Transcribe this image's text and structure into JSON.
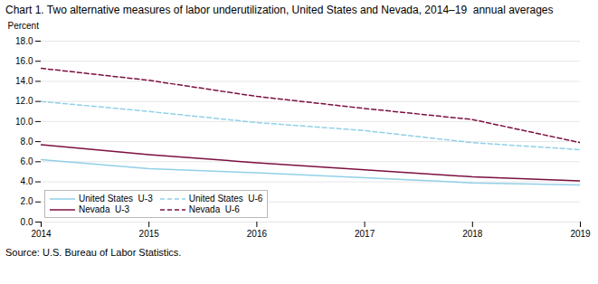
{
  "chart_data": {
    "type": "line",
    "title": "Chart 1. Two alternative measures of labor underutilization, United States and Nevada, 2014–19  annual averages",
    "y_label": "Percent",
    "caption": "Source: U.S. Bureau of Labor Statistics.",
    "x": [
      2014,
      2015,
      2016,
      2017,
      2018,
      2019
    ],
    "xlim": [
      2014,
      2019
    ],
    "xticks": [
      2014,
      2015,
      2016,
      2017,
      2018,
      2019
    ],
    "ylim": [
      0.0,
      18.0
    ],
    "yticks": [
      {
        "value": 0.0,
        "label": "0.0"
      },
      {
        "value": 2.0,
        "label": "2.0"
      },
      {
        "value": 4.0,
        "label": "4.0"
      },
      {
        "value": 6.0,
        "label": "6.0"
      },
      {
        "value": 8.0,
        "label": "8.0"
      },
      {
        "value": 10.0,
        "label": "10.0"
      },
      {
        "value": 12.0,
        "label": "12.0"
      },
      {
        "value": 14.0,
        "label": "14.0"
      },
      {
        "value": 16.0,
        "label": "16.0"
      },
      {
        "value": 18.0,
        "label": "18.0"
      }
    ],
    "grid": true,
    "legend": "lower left",
    "series": [
      {
        "name": "United States  U-3",
        "color": "#92D0E8",
        "line_style": "solid",
        "values": [
          6.2,
          5.3,
          4.9,
          4.4,
          3.9,
          3.7
        ]
      },
      {
        "name": "United States  U-6",
        "color": "#92D0E8",
        "line_style": "dashed",
        "values": [
          12.0,
          11.0,
          9.9,
          9.1,
          7.9,
          7.2
        ]
      },
      {
        "name": "Nevada  U-3",
        "color": "#7B1040",
        "line_style": "solid",
        "values": [
          7.7,
          6.7,
          5.9,
          5.2,
          4.5,
          4.1
        ]
      },
      {
        "name": "Nevada  U-6",
        "color": "#7B1040",
        "line_style": "dashed",
        "values": [
          15.3,
          14.1,
          12.5,
          11.3,
          10.2,
          7.9
        ]
      }
    ]
  }
}
